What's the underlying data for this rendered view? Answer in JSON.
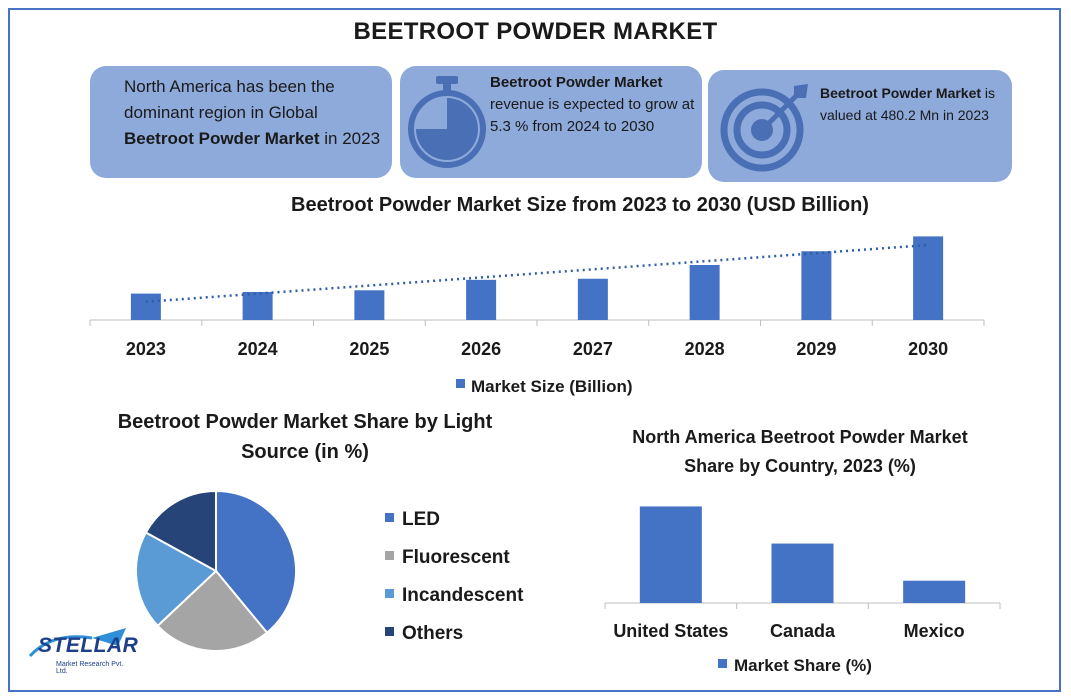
{
  "title": "BEETROOT POWDER MARKET",
  "info_boxes": {
    "box1": {
      "pre": "North America has been the dominant region in Global ",
      "bold": "Beetroot Powder Market",
      "post": " in 2023"
    },
    "box2": {
      "bold": "Beetroot Powder Market",
      "post": " revenue is expected to grow at 5.3 % from 2024 to 2030",
      "icon": "stopwatch-icon"
    },
    "box3": {
      "bold": "Beetroot Powder Market",
      "post": " is valued at 480.2 Mn in 2023",
      "icon": "target-icon"
    }
  },
  "colors": {
    "bar": "#4472c4",
    "box_bg": "#8eaadb",
    "border": "#4a72c4",
    "trend": "#2e5ea8",
    "pie": [
      "#4472c4",
      "#a5a5a5",
      "#5b9bd5",
      "#264478"
    ]
  },
  "chart_data": [
    {
      "type": "bar",
      "title": "Beetroot Powder Market Size from 2023 to 2030 (USD Billion)",
      "categories": [
        "2023",
        "2024",
        "2025",
        "2026",
        "2027",
        "2028",
        "2029",
        "2030"
      ],
      "series": [
        {
          "name": "Market Size (Billion)",
          "values": [
            0.48,
            0.51,
            0.54,
            0.73,
            0.75,
            1.0,
            1.25,
            1.52
          ]
        }
      ],
      "trendline": "linear, dotted",
      "ylim": [
        0,
        1.6
      ],
      "legend": "bottom"
    },
    {
      "type": "pie",
      "title": "Beetroot Powder Market Share by Light Source (in %)",
      "categories": [
        "LED",
        "Fluorescent",
        "Incandescent",
        "Others"
      ],
      "values": [
        39,
        24,
        20,
        17
      ],
      "legend": "right"
    },
    {
      "type": "bar",
      "title": "North America Beetroot Powder Market  Share by Country, 2023 (%)",
      "categories": [
        "United States",
        "Canada",
        "Mexico"
      ],
      "series": [
        {
          "name": "Market Share (%)",
          "values": [
            65,
            40,
            15
          ]
        }
      ],
      "ylim": [
        0,
        70
      ],
      "legend": "bottom"
    }
  ],
  "logo": {
    "name": "STELLAR",
    "sub": "Market Research Pvt. Ltd."
  }
}
